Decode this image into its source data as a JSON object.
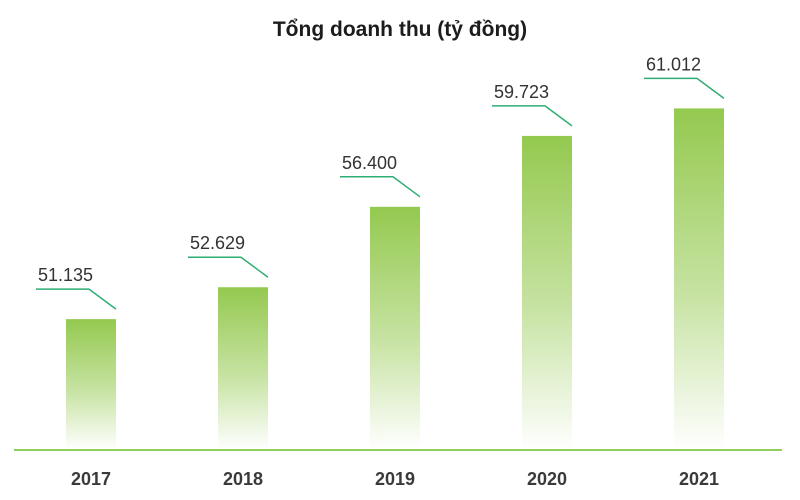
{
  "chart_data": {
    "type": "bar",
    "title": "Tổng doanh thu (tỷ đồng)",
    "categories": [
      "2017",
      "2018",
      "2019",
      "2020",
      "2021"
    ],
    "values": [
      51135,
      52629,
      56400,
      59723,
      61012
    ],
    "value_labels": [
      "51.135",
      "52.629",
      "56.400",
      "59.723",
      "61.012"
    ],
    "xlabel": "",
    "ylabel": "",
    "ylim": [
      45000,
      63000
    ],
    "grid": false,
    "legend": "none"
  },
  "colors": {
    "bar_top": "#94c94f",
    "bar_bottom": "#ffffff",
    "accent_line": "#2fae73",
    "baseline": "#8fcf5a",
    "tick_text": "#3a3a3a",
    "value_text": "#333333"
  }
}
